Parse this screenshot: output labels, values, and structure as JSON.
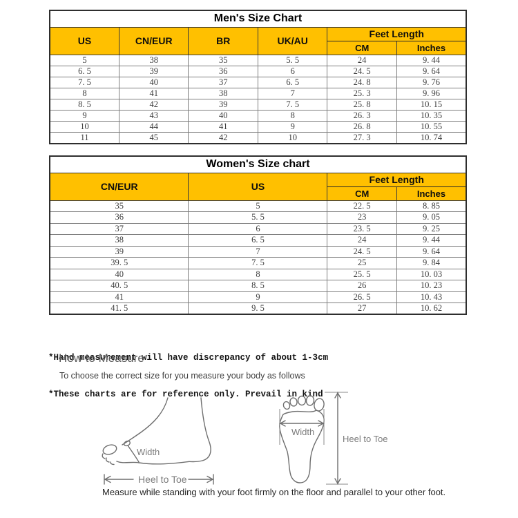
{
  "mens_chart": {
    "title": "Men's Size Chart",
    "columns": [
      "US",
      "CN/EUR",
      "BR",
      "UK/AU"
    ],
    "feet_length_label": "Feet Length",
    "feet_length_sub": [
      "CM",
      "Inches"
    ],
    "rows": [
      [
        "5",
        "38",
        "35",
        "5. 5",
        "24",
        "9. 44"
      ],
      [
        "6. 5",
        "39",
        "36",
        "6",
        "24. 5",
        "9. 64"
      ],
      [
        "7. 5",
        "40",
        "37",
        "6. 5",
        "24. 8",
        "9. 76"
      ],
      [
        "8",
        "41",
        "38",
        "7",
        "25. 3",
        "9. 96"
      ],
      [
        "8. 5",
        "42",
        "39",
        "7. 5",
        "25. 8",
        "10. 15"
      ],
      [
        "9",
        "43",
        "40",
        "8",
        "26. 3",
        "10. 35"
      ],
      [
        "10",
        "44",
        "41",
        "9",
        "26. 8",
        "10. 55"
      ],
      [
        "11",
        "45",
        "42",
        "10",
        "27. 3",
        "10. 74"
      ]
    ]
  },
  "womens_chart": {
    "title": "Women's Size chart",
    "columns": [
      "CN/EUR",
      "US"
    ],
    "feet_length_label": "Feet Length",
    "feet_length_sub": [
      "CM",
      "Inches"
    ],
    "rows": [
      [
        "35",
        "5",
        "22. 5",
        "8. 85"
      ],
      [
        "36",
        "5. 5",
        "23",
        "9. 05"
      ],
      [
        "37",
        "6",
        "23. 5",
        "9. 25"
      ],
      [
        "38",
        "6. 5",
        "24",
        "9. 44"
      ],
      [
        "39",
        "7",
        "24. 5",
        "9. 64"
      ],
      [
        "39. 5",
        "7. 5",
        "25",
        "9. 84"
      ],
      [
        "40",
        "8",
        "25. 5",
        "10. 03"
      ],
      [
        "40. 5",
        "8. 5",
        "26",
        "10. 23"
      ],
      [
        "41",
        "9",
        "26. 5",
        "10. 43"
      ],
      [
        "41. 5",
        "9. 5",
        "27",
        "10. 62"
      ]
    ]
  },
  "notes": [
    "*Hand measurement will have discrepancy of about 1-3cm",
    "*These charts are for reference only. Prevail in kind"
  ],
  "measure_section": {
    "heading": "How to Measure",
    "subtitle": "To choose the correct size for you measure your body as follows",
    "side_view": {
      "width_label": "Width",
      "length_label": "Heel to Toe"
    },
    "sole_view": {
      "width_label": "Width",
      "length_label": "Heel to Toe"
    },
    "caption": "Measure while standing with your foot firmly on the floor and parallel to your other foot."
  },
  "colors": {
    "header_bg": "#FFC000",
    "outer_border": "#2e2e2e",
    "inner_border": "#7d7d7d",
    "data_text": "#3d3d3d",
    "diagram_stroke": "#6e6e6e",
    "label_gray": "#7a7a7a"
  }
}
